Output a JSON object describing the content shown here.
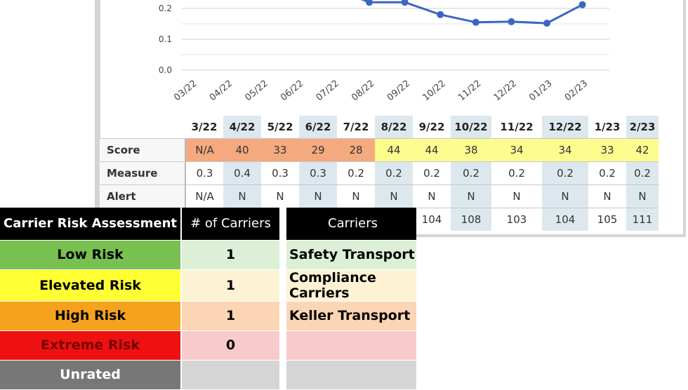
{
  "chart_data": {
    "type": "line",
    "x": [
      "03/22",
      "04/22",
      "05/22",
      "06/22",
      "07/22",
      "08/22",
      "09/22",
      "10/22",
      "11/22",
      "12/22",
      "01/23",
      "02/23"
    ],
    "y_ticks": [
      "0.0",
      "0.1",
      "0.2"
    ],
    "visible_points": [
      {
        "x": "08/22",
        "y": 0.22
      },
      {
        "x": "09/22",
        "y": 0.22
      },
      {
        "x": "10/22",
        "y": 0.18
      },
      {
        "x": "11/22",
        "y": 0.155
      },
      {
        "x": "12/22",
        "y": 0.157
      },
      {
        "x": "01/23",
        "y": 0.152
      },
      {
        "x": "02/23",
        "y": 0.212
      }
    ],
    "ylim_visible": [
      0.0,
      0.22
    ],
    "line_color": "#3a66c4",
    "grid": true
  },
  "score_table": {
    "months": [
      "3/22",
      "4/22",
      "5/22",
      "6/22",
      "7/22",
      "8/22",
      "9/22",
      "10/22",
      "11/22",
      "12/22",
      "1/23",
      "2/23"
    ],
    "rows": [
      {
        "label": "Score",
        "values": [
          "N/A",
          "40",
          "33",
          "29",
          "28",
          "44",
          "44",
          "38",
          "34",
          "34",
          "33",
          "42"
        ]
      },
      {
        "label": "Measure",
        "values": [
          "0.3",
          "0.4",
          "0.3",
          "0.3",
          "0.2",
          "0.2",
          "0.2",
          "0.2",
          "0.2",
          "0.2",
          "0.2",
          "0.2"
        ]
      },
      {
        "label": "Alert",
        "values": [
          "N/A",
          "N",
          "N",
          "N",
          "N",
          "N",
          "N",
          "N",
          "N",
          "N",
          "N",
          "N"
        ]
      },
      {
        "label": "",
        "values": [
          "",
          "",
          "",
          "",
          "",
          "",
          "104",
          "108",
          "103",
          "104",
          "105",
          "111"
        ]
      }
    ],
    "colors": {
      "high": "#f5a97e",
      "elevated": "#fdfc8f"
    }
  },
  "risk_table": {
    "headers": [
      "Carrier Risk Assessment",
      "# of Carriers",
      "Carriers"
    ],
    "rows": [
      {
        "level": "Low Risk",
        "count": "1",
        "carriers": "Safety Transport",
        "level_bg": "#78c050",
        "level_fg": "#000000",
        "row_bg": "#dbf0d6"
      },
      {
        "level": "Elevated Risk",
        "count": "1",
        "carriers": "Compliance Carriers",
        "level_bg": "#ffff33",
        "level_fg": "#000000",
        "row_bg": "#fdf3d4"
      },
      {
        "level": "High Risk",
        "count": "1",
        "carriers": "Keller Transport",
        "level_bg": "#f6a21e",
        "level_fg": "#000000",
        "row_bg": "#fcd5b4"
      },
      {
        "level": "Extreme Risk",
        "count": "0",
        "carriers": "",
        "level_bg": "#ee1111",
        "level_fg": "#7a0000",
        "row_bg": "#f8cbcb"
      },
      {
        "level": "Unrated",
        "count": "",
        "carriers": "",
        "level_bg": "#777777",
        "level_fg": "#ffffff",
        "row_bg": "#d5d5d5"
      }
    ]
  }
}
